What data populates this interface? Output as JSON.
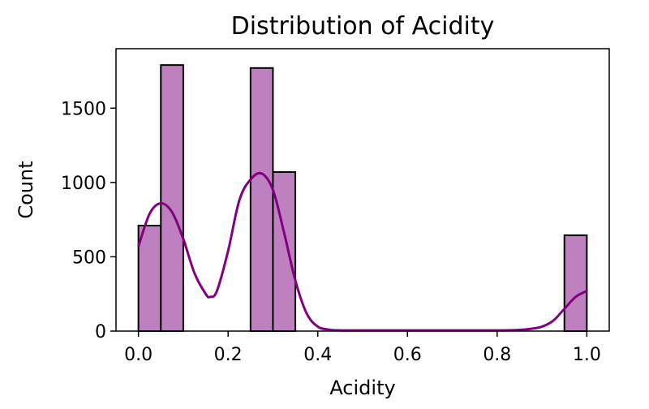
{
  "chart_data": {
    "type": "bar",
    "title": "Distribution of Acidity",
    "xlabel": "Acidity",
    "ylabel": "Count",
    "xlim": [
      -0.05,
      1.05
    ],
    "ylim": [
      0,
      1900
    ],
    "xticks": [
      0.0,
      0.2,
      0.4,
      0.6,
      0.8,
      1.0
    ],
    "xtick_labels": [
      "0.0",
      "0.2",
      "0.4",
      "0.6",
      "0.8",
      "1.0"
    ],
    "yticks": [
      0,
      500,
      1000,
      1500
    ],
    "ytick_labels": [
      "0",
      "500",
      "1000",
      "1500"
    ],
    "grid": false,
    "bins": [
      {
        "x0": 0.0,
        "x1": 0.05,
        "count": 710
      },
      {
        "x0": 0.05,
        "x1": 0.1,
        "count": 1790
      },
      {
        "x0": 0.1,
        "x1": 0.15,
        "count": 0
      },
      {
        "x0": 0.15,
        "x1": 0.2,
        "count": 0
      },
      {
        "x0": 0.2,
        "x1": 0.25,
        "count": 0
      },
      {
        "x0": 0.25,
        "x1": 0.3,
        "count": 1770
      },
      {
        "x0": 0.3,
        "x1": 0.35,
        "count": 1070
      },
      {
        "x0": 0.35,
        "x1": 0.4,
        "count": 0
      },
      {
        "x0": 0.4,
        "x1": 0.45,
        "count": 0
      },
      {
        "x0": 0.45,
        "x1": 0.5,
        "count": 0
      },
      {
        "x0": 0.5,
        "x1": 0.55,
        "count": 0
      },
      {
        "x0": 0.55,
        "x1": 0.6,
        "count": 0
      },
      {
        "x0": 0.6,
        "x1": 0.65,
        "count": 0
      },
      {
        "x0": 0.65,
        "x1": 0.7,
        "count": 0
      },
      {
        "x0": 0.7,
        "x1": 0.75,
        "count": 0
      },
      {
        "x0": 0.75,
        "x1": 0.8,
        "count": 0
      },
      {
        "x0": 0.8,
        "x1": 0.85,
        "count": 0
      },
      {
        "x0": 0.85,
        "x1": 0.9,
        "count": 0
      },
      {
        "x0": 0.9,
        "x1": 0.95,
        "count": 0
      },
      {
        "x0": 0.95,
        "x1": 1.0,
        "count": 645
      }
    ],
    "kde": {
      "x": [
        0.0,
        0.025,
        0.05,
        0.075,
        0.1,
        0.125,
        0.15,
        0.16,
        0.175,
        0.2,
        0.225,
        0.25,
        0.275,
        0.3,
        0.325,
        0.35,
        0.375,
        0.4,
        0.425,
        0.45,
        0.5,
        0.6,
        0.7,
        0.8,
        0.85,
        0.875,
        0.9,
        0.925,
        0.95,
        0.975,
        1.0
      ],
      "y": [
        570,
        790,
        860,
        800,
        620,
        390,
        250,
        230,
        270,
        540,
        880,
        1020,
        1060,
        950,
        660,
        340,
        120,
        30,
        10,
        5,
        5,
        5,
        5,
        5,
        8,
        15,
        30,
        70,
        150,
        230,
        270
      ]
    },
    "colors": {
      "bar_fill": "#bf80bf",
      "bar_edge": "#000000",
      "kde_line": "#800080"
    }
  }
}
